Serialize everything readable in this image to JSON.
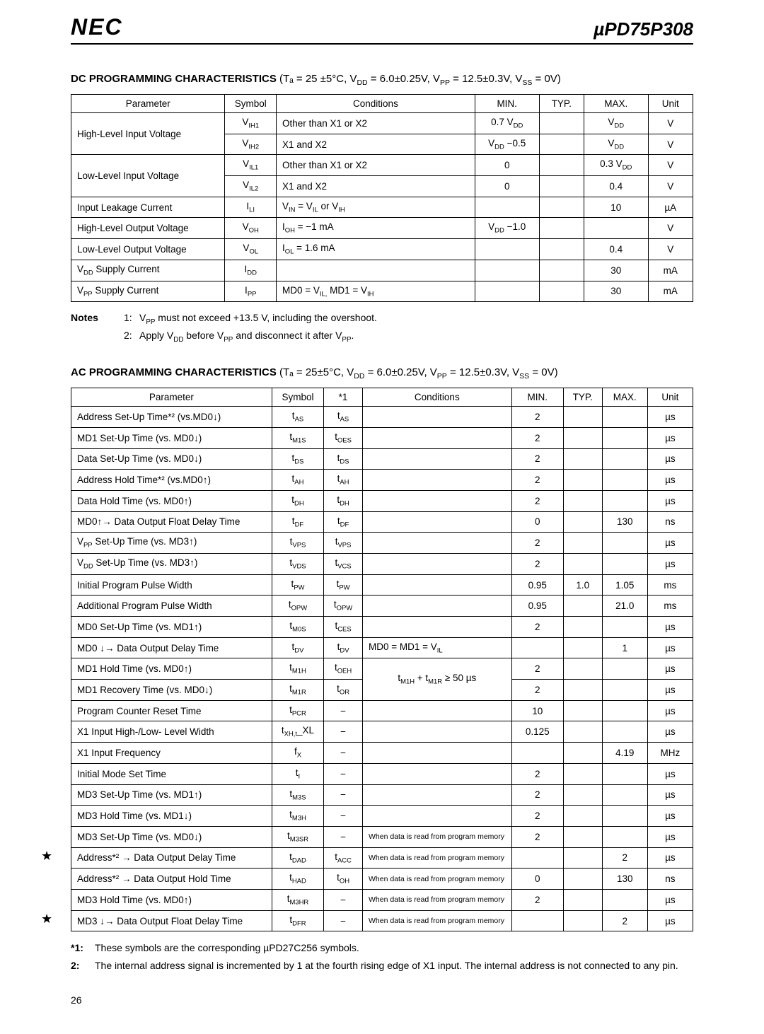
{
  "header": {
    "logo": "NEC",
    "part": "µPD75P308"
  },
  "dc": {
    "title_bold": "DC PROGRAMMING CHARACTERISTICS",
    "title_cond": " (Tₐ = 25 ±5°C, V_DD = 6.0±0.25V, V_PP = 12.5±0.3V, V_SS = 0V)",
    "headers": [
      "Parameter",
      "Symbol",
      "Conditions",
      "MIN.",
      "TYP.",
      "MAX.",
      "Unit"
    ],
    "rows": [
      {
        "param": "High-Level Input Voltage",
        "rowspan": 2,
        "symbol": "V_IH1",
        "cond": "Other than X1 or X2",
        "min": "0.7 V_DD",
        "typ": "",
        "max": "V_DD",
        "unit": "V"
      },
      {
        "symbol": "V_IH2",
        "cond": "X1 and  X2",
        "min": "V_DD −0.5",
        "typ": "",
        "max": "V_DD",
        "unit": "V"
      },
      {
        "param": "Low-Level Input Voltage",
        "rowspan": 2,
        "symbol": "V_IL1",
        "cond": "Other than X1 or X2",
        "min": "0",
        "typ": "",
        "max": "0.3 V_DD",
        "unit": "V"
      },
      {
        "symbol": "V_IL2",
        "cond": "X1 and X2",
        "min": "0",
        "typ": "",
        "max": "0.4",
        "unit": "V"
      },
      {
        "param": "Input Leakage Current",
        "symbol": "I_LI",
        "cond": "V_IN = V_IL or V_IH",
        "min": "",
        "typ": "",
        "max": "10",
        "unit": "µA"
      },
      {
        "param": "High-Level Output Voltage",
        "symbol": "V_OH",
        "cond": "I_OH = −1 mA",
        "min": "V_DD −1.0",
        "typ": "",
        "max": "",
        "unit": "V"
      },
      {
        "param": "Low-Level Output Voltage",
        "symbol": "V_OL",
        "cond": "I_OL = 1.6 mA",
        "min": "",
        "typ": "",
        "max": "0.4",
        "unit": "V"
      },
      {
        "param": "V_DD Supply Current",
        "symbol": "I_DD",
        "cond": "",
        "min": "",
        "typ": "",
        "max": "30",
        "unit": "mA"
      },
      {
        "param": "V_PP Supply Current",
        "symbol": "I_PP",
        "cond": "MD0 = V_IL, MD1 = V_IH",
        "min": "",
        "typ": "",
        "max": "30",
        "unit": "mA"
      }
    ]
  },
  "notes": {
    "label": "Notes",
    "items": [
      {
        "n": "1:",
        "t": "V_PP must not exceed +13.5 V, including the overshoot."
      },
      {
        "n": "2:",
        "t": "Apply V_DD before V_PP and disconnect it after V_PP."
      }
    ]
  },
  "ac": {
    "title_bold": "AC PROGRAMMING CHARACTERISTICS",
    "title_cond": " (Tₐ = 25±5°C, V_DD = 6.0±0.25V, V_PP = 12.5±0.3V, V_SS = 0V)",
    "headers": [
      "Parameter",
      "Symbol",
      "*1",
      "Conditions",
      "MIN.",
      "TYP.",
      "MAX.",
      "Unit"
    ],
    "rows": [
      {
        "param": "Address Set-Up Time*² (vs.MD0↓)",
        "sym": "t_AS",
        "s1": "t_AS",
        "cond": "",
        "min": "2",
        "typ": "",
        "max": "",
        "unit": "µs"
      },
      {
        "param": "MD1 Set-Up Time (vs. MD0↓)",
        "sym": "t_M1S",
        "s1": "t_OES",
        "cond": "",
        "min": "2",
        "typ": "",
        "max": "",
        "unit": "µs"
      },
      {
        "param": "Data Set-Up Time (vs. MD0↓)",
        "sym": "t_DS",
        "s1": "t_DS",
        "cond": "",
        "min": "2",
        "typ": "",
        "max": "",
        "unit": "µs"
      },
      {
        "param": "Address Hold Time*² (vs.MD0↑)",
        "sym": "t_AH",
        "s1": "t_AH",
        "cond": "",
        "min": "2",
        "typ": "",
        "max": "",
        "unit": "µs"
      },
      {
        "param": "Data Hold Time (vs. MD0↑)",
        "sym": "t_DH",
        "s1": "t_DH",
        "cond": "",
        "min": "2",
        "typ": "",
        "max": "",
        "unit": "µs"
      },
      {
        "param": "MD0↑→ Data Output Float Delay Time",
        "sym": "t_DF",
        "s1": "t_DF",
        "cond": "",
        "min": "0",
        "typ": "",
        "max": "130",
        "unit": "ns"
      },
      {
        "param": "V_PP Set-Up Time (vs. MD3↑)",
        "sym": "t_VPS",
        "s1": "t_VPS",
        "cond": "",
        "min": "2",
        "typ": "",
        "max": "",
        "unit": "µs"
      },
      {
        "param": "V_DD Set-Up Time (vs. MD3↑)",
        "sym": "t_VDS",
        "s1": "t_VCS",
        "cond": "",
        "min": "2",
        "typ": "",
        "max": "",
        "unit": "µs"
      },
      {
        "param": "Initial Program Pulse Width",
        "sym": "t_PW",
        "s1": "t_PW",
        "cond": "",
        "min": "0.95",
        "typ": "1.0",
        "max": "1.05",
        "unit": "ms"
      },
      {
        "param": "Additional Program Pulse Width",
        "sym": "t_OPW",
        "s1": "t_OPW",
        "cond": "",
        "min": "0.95",
        "typ": "",
        "max": "21.0",
        "unit": "ms"
      },
      {
        "param": "MD0 Set-Up Time (vs. MD1↑)",
        "sym": "t_M0S",
        "s1": "t_CES",
        "cond": "",
        "min": "2",
        "typ": "",
        "max": "",
        "unit": "µs"
      },
      {
        "param": "MD0 ↓→ Data Output Delay Time",
        "sym": "t_DV",
        "s1": "t_DV",
        "cond": "MD0 = MD1 = V_IL",
        "min": "",
        "typ": "",
        "max": "1",
        "unit": "µs"
      },
      {
        "param": "MD1 Hold Time (vs. MD0↑)",
        "sym": "t_M1H",
        "s1": "t_OEH",
        "cond": "__span__",
        "min": "2",
        "typ": "",
        "max": "",
        "unit": "µs",
        "cond_rowspan": 2,
        "cond_text": "t_M1H + t_M1R ≥ 50 µs"
      },
      {
        "param": "MD1 Recovery Time (vs. MD0↓)",
        "sym": "t_M1R",
        "s1": "t_OR",
        "cond": "__skip__",
        "min": "2",
        "typ": "",
        "max": "",
        "unit": "µs"
      },
      {
        "param": "Program Counter Reset Time",
        "sym": "t_PCR",
        "s1": "−",
        "cond": "",
        "min": "10",
        "typ": "",
        "max": "",
        "unit": "µs"
      },
      {
        "param": "X1 Input High-/Low- Level Width",
        "sym": "t_XH,t_XL",
        "s1": "−",
        "cond": "",
        "min": "0.125",
        "typ": "",
        "max": "",
        "unit": "µs"
      },
      {
        "param": "X1 Input Frequency",
        "sym": "f_X",
        "s1": "−",
        "cond": "",
        "min": "",
        "typ": "",
        "max": "4.19",
        "unit": "MHz"
      },
      {
        "param": "Initial Mode Set Time",
        "sym": "t_I",
        "s1": "−",
        "cond": "",
        "min": "2",
        "typ": "",
        "max": "",
        "unit": "µs"
      },
      {
        "param": "MD3 Set-Up Time (vs. MD1↑)",
        "sym": "t_M3S",
        "s1": "−",
        "cond": "",
        "min": "2",
        "typ": "",
        "max": "",
        "unit": "µs"
      },
      {
        "param": "MD3 Hold Time (vs. MD1↓)",
        "sym": "t_M3H",
        "s1": "−",
        "cond": "",
        "min": "2",
        "typ": "",
        "max": "",
        "unit": "µs"
      },
      {
        "param": "MD3 Set-Up Time (vs. MD0↓)",
        "sym": "t_M3SR",
        "s1": "−",
        "cond": "When data is read from program memory",
        "min": "2",
        "typ": "",
        "max": "",
        "unit": "µs",
        "small": true
      },
      {
        "param": "Address*² → Data Output Delay Time",
        "sym": "t_DAD",
        "s1": "t_ACC",
        "cond": "When data is read from program memory",
        "min": "",
        "typ": "",
        "max": "2",
        "unit": "µs",
        "small": true,
        "star": true
      },
      {
        "param": "Address*² → Data Output Hold Time",
        "sym": "t_HAD",
        "s1": "t_OH",
        "cond": "When data is read from program memory",
        "min": "0",
        "typ": "",
        "max": "130",
        "unit": "ns",
        "small": true
      },
      {
        "param": "MD3 Hold Time (vs. MD0↑)",
        "sym": "t_M3HR",
        "s1": "−",
        "cond": "When data is read from program memory",
        "min": "2",
        "typ": "",
        "max": "",
        "unit": "µs",
        "small": true
      },
      {
        "param": "MD3 ↓→ Data Output Float Delay Time",
        "sym": "t_DFR",
        "s1": "−",
        "cond": "When data is read from program memory",
        "min": "",
        "typ": "",
        "max": "2",
        "unit": "µs",
        "small": true,
        "star": true
      }
    ]
  },
  "footnotes": {
    "items": [
      {
        "n": "*1:",
        "t": "These symbols are the corresponding µPD27C256 symbols."
      },
      {
        "n": "2:",
        "t": "The internal address signal is incremented by 1 at the fourth rising edge of X1 input.  The internal address is not connected to any pin."
      }
    ]
  },
  "page_number": "26"
}
